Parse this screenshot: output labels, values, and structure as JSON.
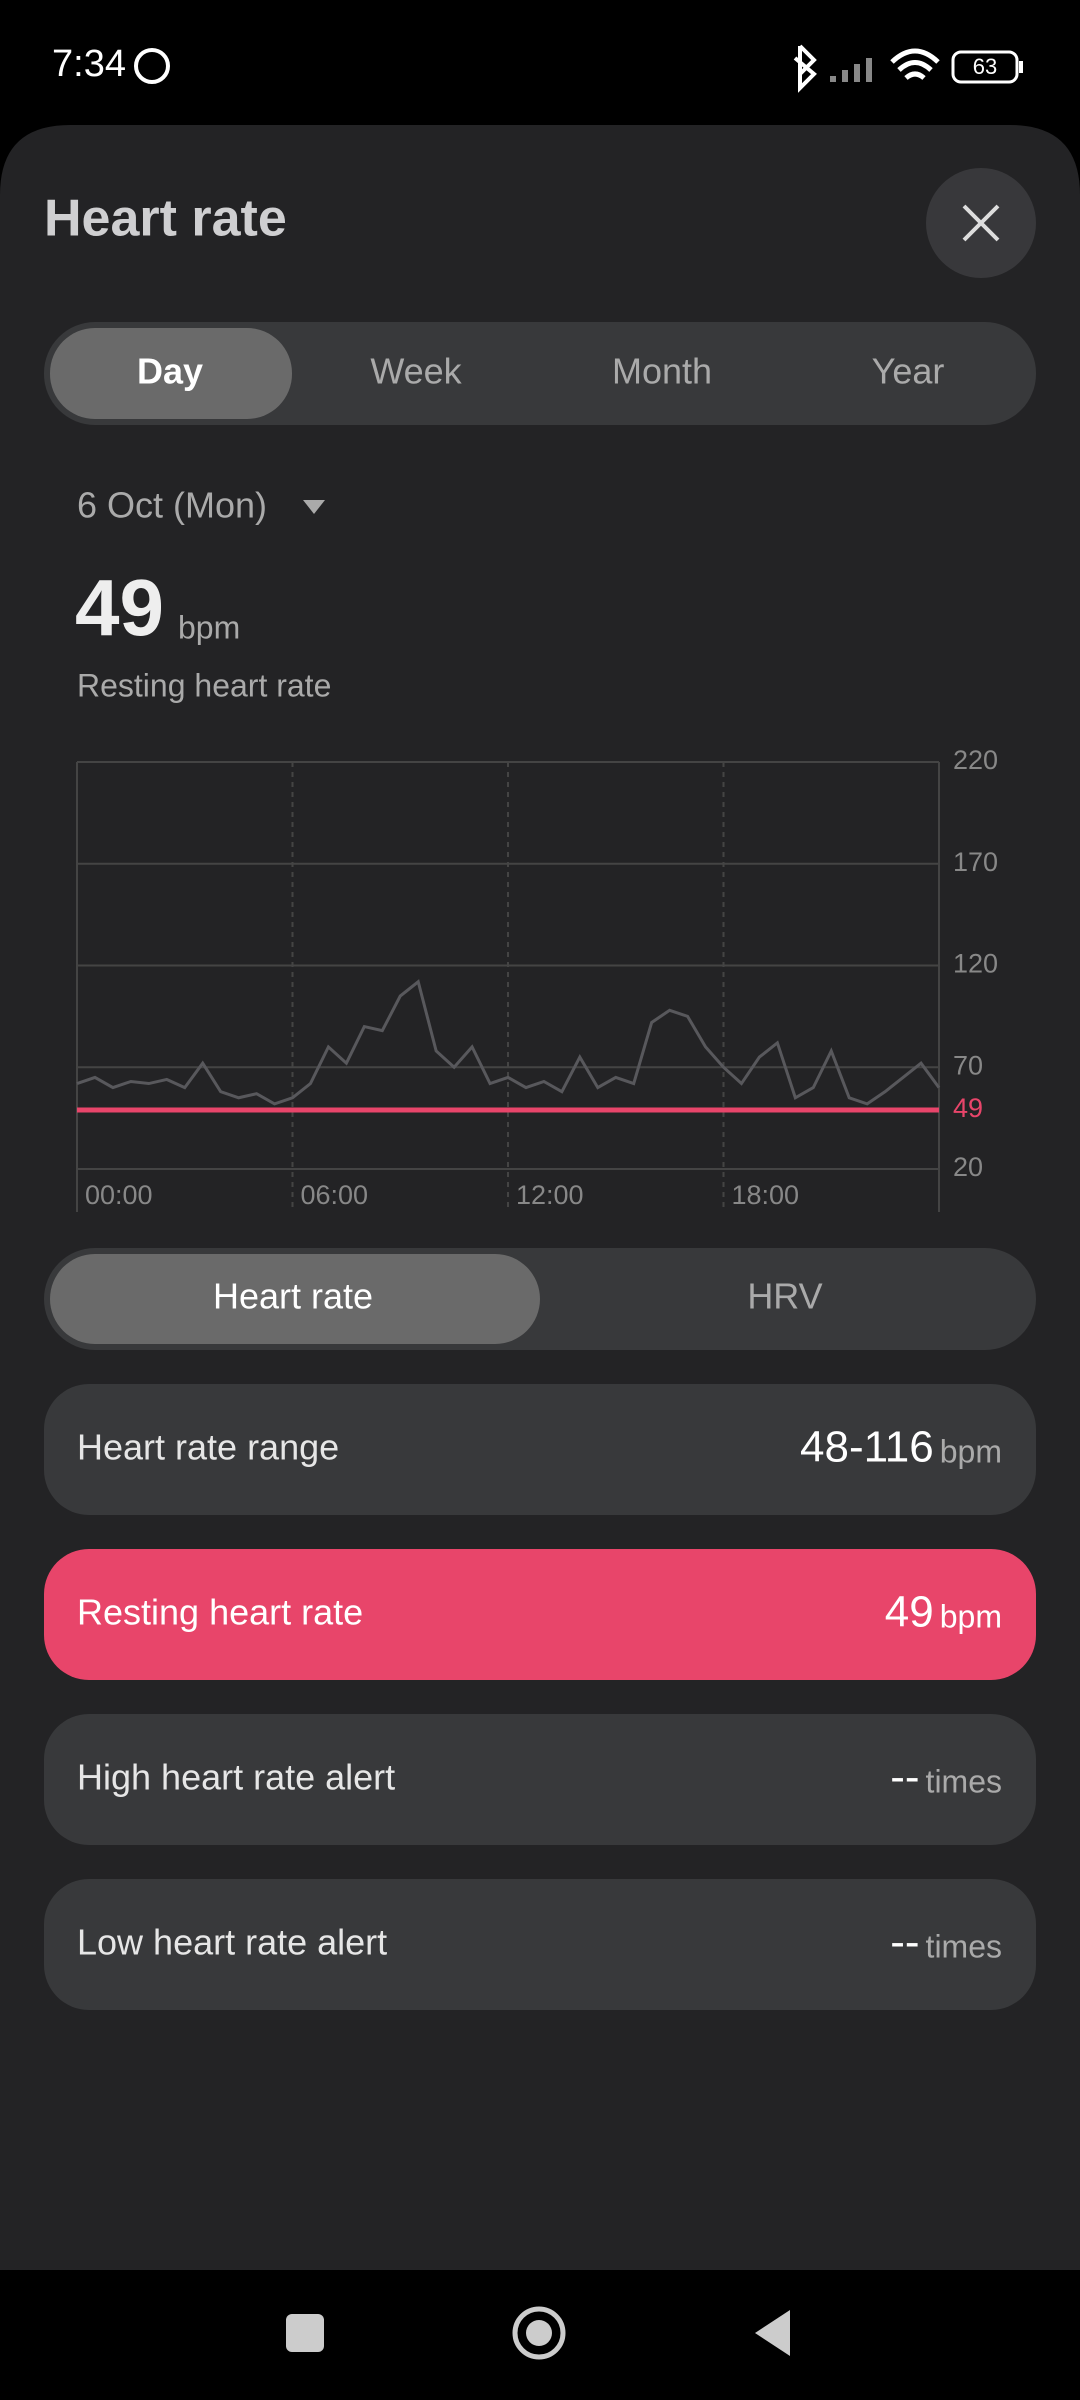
{
  "status_bar": {
    "time": "7:34",
    "battery": "63"
  },
  "header": {
    "title": "Heart rate"
  },
  "tabs": [
    "Day",
    "Week",
    "Month",
    "Year"
  ],
  "summary": {
    "date": "6 Oct (Mon)",
    "value": "49",
    "unit": "bpm",
    "label": "Resting heart rate"
  },
  "chart_data": {
    "type": "line",
    "x": [
      0,
      0.5,
      1,
      1.5,
      2,
      2.5,
      3,
      3.5,
      4,
      4.5,
      5,
      5.5,
      6,
      6.5,
      7,
      7.5,
      8,
      8.5,
      9,
      9.5,
      10,
      10.5,
      11,
      11.5,
      12,
      12.5,
      13,
      13.5,
      14,
      14.5,
      15,
      15.5,
      16,
      16.5,
      17,
      17.5,
      18,
      18.5,
      19,
      19.5,
      20,
      20.5,
      21,
      21.5,
      22,
      22.5,
      23,
      23.5,
      24
    ],
    "series": [
      {
        "color": "#58585c",
        "values": [
          62,
          65,
          60,
          63,
          62,
          64,
          60,
          72,
          58,
          55,
          57,
          52,
          55,
          62,
          80,
          72,
          90,
          88,
          105,
          112,
          78,
          70,
          80,
          62,
          65,
          60,
          63,
          58,
          75,
          60,
          65,
          62,
          92,
          98,
          95,
          80,
          70,
          62,
          75,
          82,
          55,
          60,
          78,
          55,
          52,
          58,
          65,
          72,
          60
        ]
      }
    ],
    "xlim": [
      0,
      24
    ],
    "xticks": [
      {
        "value": 0,
        "label": "00:00"
      },
      {
        "value": 6,
        "label": "06:00"
      },
      {
        "value": 12,
        "label": "12:00"
      },
      {
        "value": 18,
        "label": "18:00"
      }
    ],
    "ylim": [
      20,
      220
    ],
    "yticks": [
      20,
      70,
      120,
      170,
      220
    ],
    "grid": true,
    "reference_line": {
      "value": 49,
      "color": "#e8456a"
    }
  },
  "toggle": [
    "Heart rate",
    "HRV"
  ],
  "stats": [
    {
      "label": "Heart rate range",
      "value": "48-116",
      "unit": "bpm"
    },
    {
      "label": "Resting heart rate",
      "value": "49",
      "unit": "bpm"
    },
    {
      "label": "High heart rate alert",
      "value": "--",
      "unit": "times"
    },
    {
      "label": "Low heart rate alert",
      "value": "--",
      "unit": "times"
    }
  ]
}
